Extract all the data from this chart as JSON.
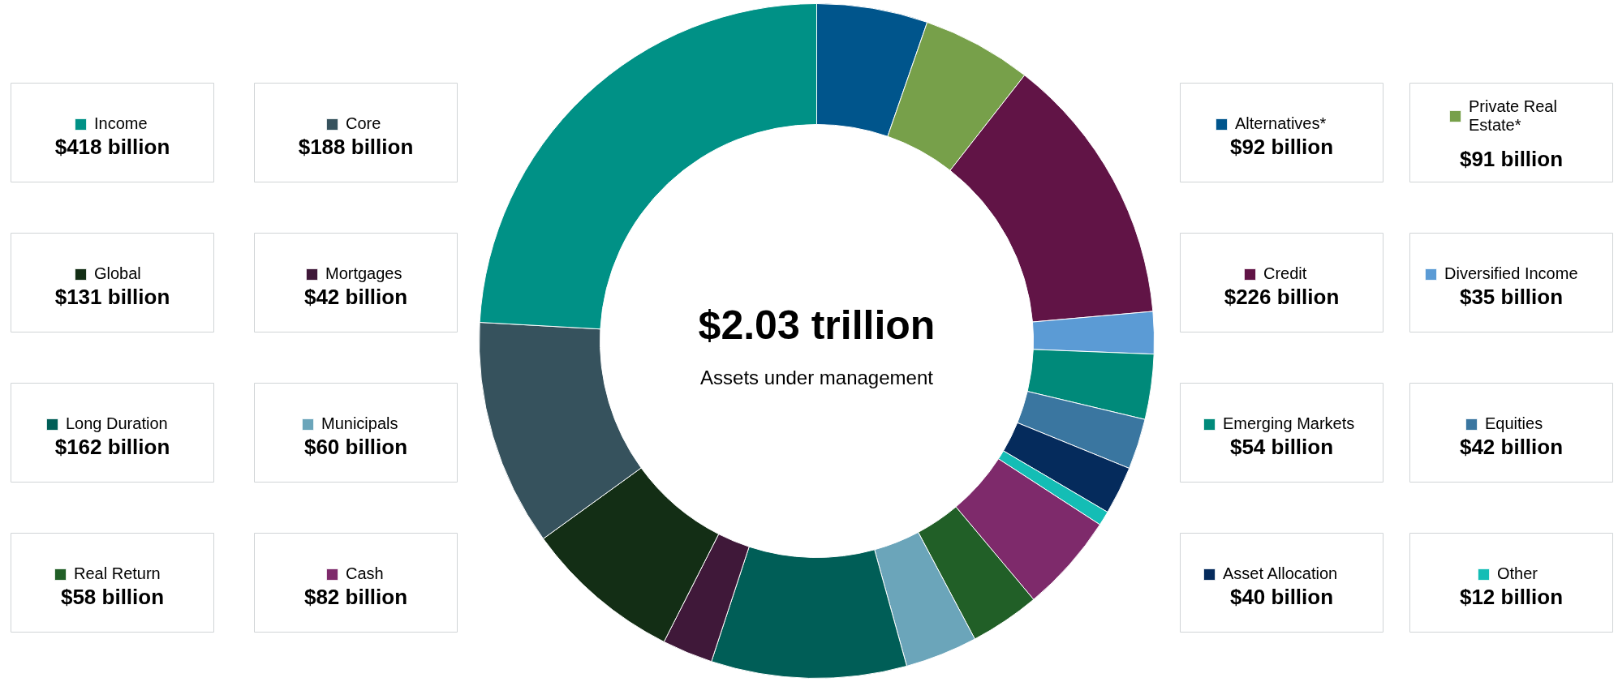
{
  "chart_data": {
    "type": "donut",
    "title": "$2.03 trillion",
    "subtitle": "Assets under management",
    "categories": [
      "Alternatives*",
      "Private Real Estate*",
      "Credit",
      "Diversified Income",
      "Emerging Markets",
      "Equities",
      "Asset Allocation",
      "Other",
      "Cash",
      "Real Return",
      "Municipals",
      "Long Duration",
      "Mortgages",
      "Global",
      "Core",
      "Income"
    ],
    "values": [
      92,
      91,
      226,
      35,
      54,
      42,
      40,
      12,
      82,
      58,
      60,
      162,
      42,
      131,
      188,
      418
    ],
    "value_labels": [
      "$92 billion",
      "$91 billion",
      "$226 billion",
      "$35 billion",
      "$54 billion",
      "$42 billion",
      "$40 billion",
      "$12 billion",
      "$82 billion",
      "$58 billion",
      "$60 billion",
      "$162 billion",
      "$42 billion",
      "$131 billion",
      "$188 billion",
      "$418 billion"
    ],
    "colors": [
      "#00558c",
      "#77a04a",
      "#611446",
      "#5b9bd5",
      "#008a7a",
      "#3a76a0",
      "#052b5c",
      "#14bdb5",
      "#7e2a6b",
      "#215f27",
      "#6ba5ba",
      "#005e57",
      "#3f1839",
      "#132e15",
      "#36525d",
      "#009186"
    ],
    "legend": "right"
  }
}
